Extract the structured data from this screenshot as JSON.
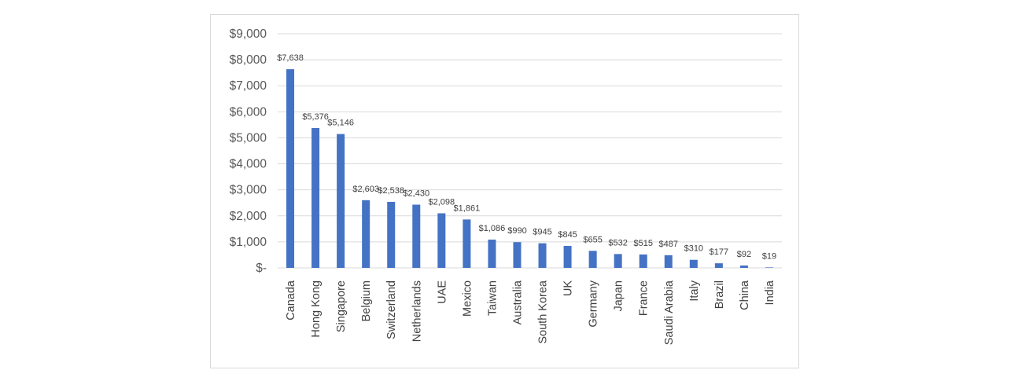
{
  "chart_data": {
    "type": "bar",
    "categories": [
      "Canada",
      "Hong Kong",
      "Singapore",
      "Belgium",
      "Switzerland",
      "Netherlands",
      "UAE",
      "Mexico",
      "Taiwan",
      "Australia",
      "South Korea",
      "UK",
      "Germany",
      "Japan",
      "France",
      "Saudi Arabia",
      "Italy",
      "Brazil",
      "China",
      "India"
    ],
    "values": [
      7638,
      5376,
      5146,
      2603,
      2538,
      2430,
      2098,
      1861,
      1086,
      990,
      945,
      845,
      655,
      532,
      515,
      487,
      310,
      177,
      92,
      19
    ],
    "data_labels": [
      "$7,638",
      "$5,376",
      "$5,146",
      "$2,603",
      "$2,538",
      "$2,430",
      "$2,098",
      "$1,861",
      "$1,086",
      "$990",
      "$945",
      "$845",
      "$655",
      "$532",
      "$515",
      "$487",
      "$310",
      "$177",
      "$92",
      "$19"
    ],
    "y_ticks": [
      0,
      1000,
      2000,
      3000,
      4000,
      5000,
      6000,
      7000,
      8000,
      9000
    ],
    "y_tick_labels": [
      "$-",
      "$1,000",
      "$2,000",
      "$3,000",
      "$4,000",
      "$5,000",
      "$6,000",
      "$7,000",
      "$8,000",
      "$9,000"
    ],
    "ylim": [
      0,
      9000
    ],
    "grid": true,
    "bar_color": "#4472c4",
    "grid_color": "#d9d9d9",
    "title": "",
    "xlabel": "",
    "ylabel": ""
  }
}
